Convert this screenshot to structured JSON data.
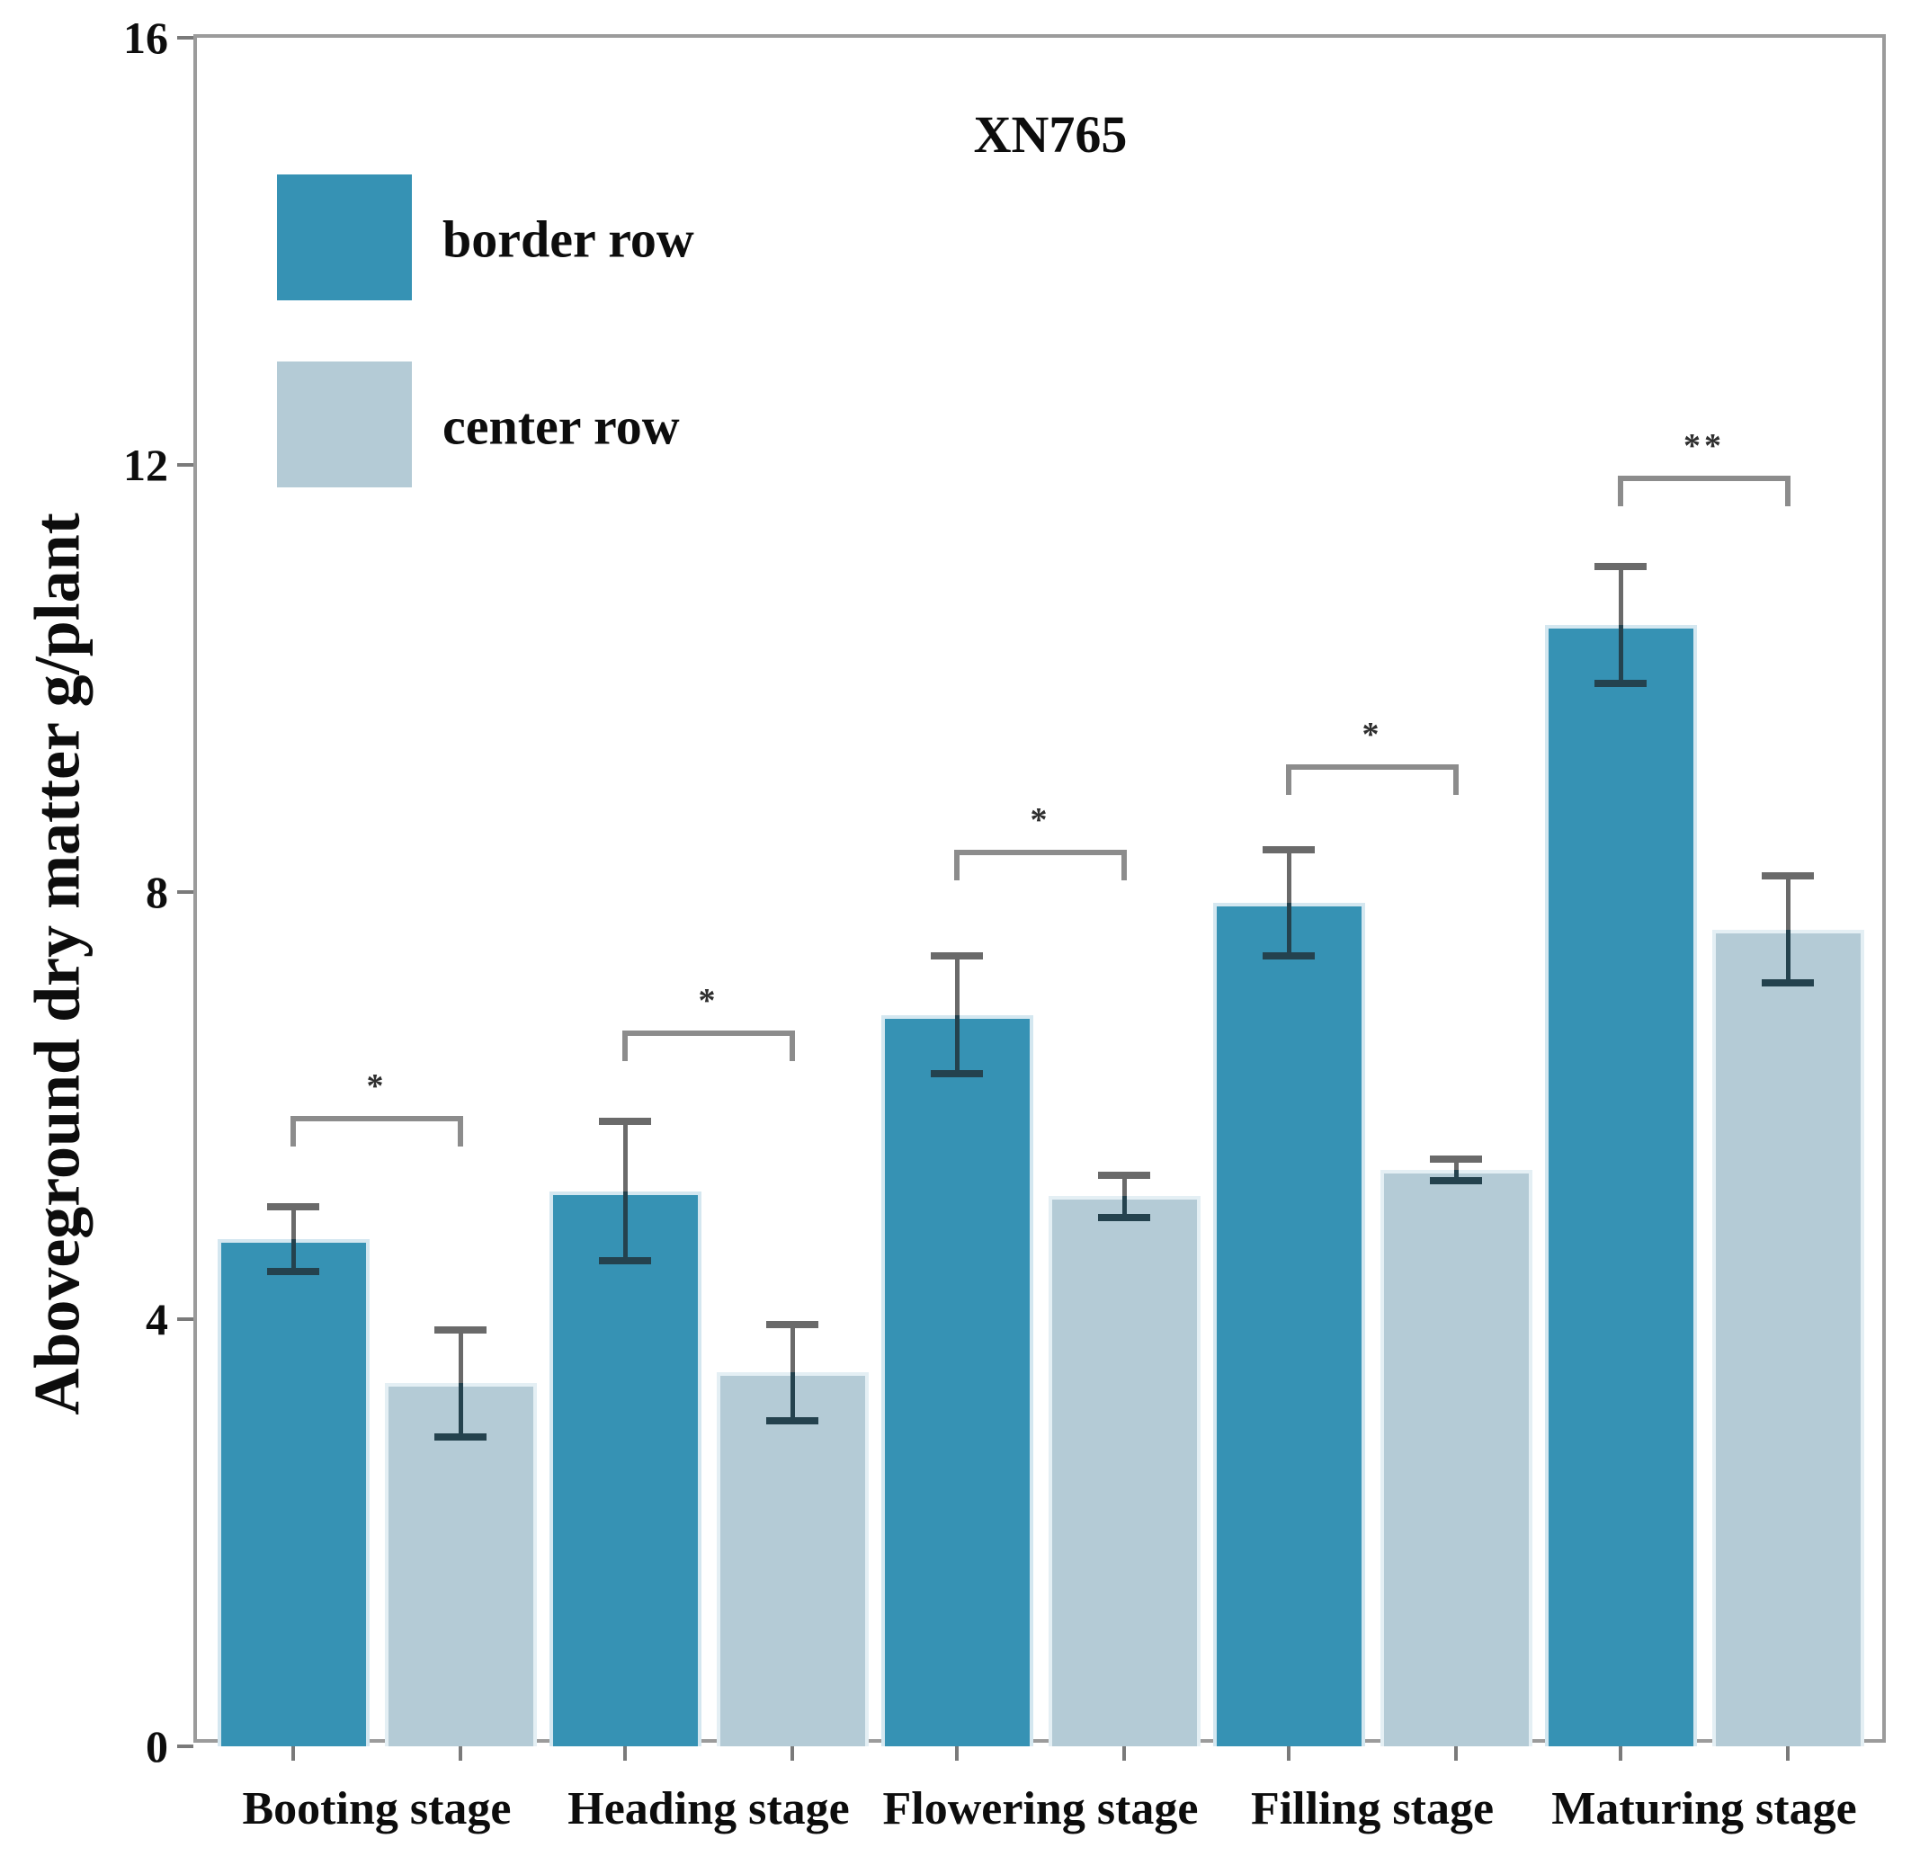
{
  "figure": {
    "title": "XN765",
    "y_axis_label": "Aboveground dry matter g/plant"
  },
  "colors": {
    "border_row_fill": "#3692B4",
    "border_row_halo": "#D4E7F0",
    "center_row_fill": "#B4CBD6",
    "center_row_halo": "#E4EFF4",
    "error_bar_upper": "#6A6A6A",
    "error_bar_lower": "#24424E",
    "bracket": "#8C8C8C",
    "axis_frame": "#9B9B9B",
    "text": "#0D0D0D"
  },
  "chart_data": {
    "type": "bar",
    "title": "XN765",
    "xlabel": "",
    "ylabel": "Aboveground dry matter g/plant",
    "ylim": [
      0,
      16
    ],
    "yticks": [
      0,
      4,
      8,
      12,
      16
    ],
    "grid": false,
    "legend_position": "upper-left-inside",
    "categories": [
      "Booting stage",
      "Heading stage",
      "Flowering stage",
      "Filling stage",
      "Maturing stage"
    ],
    "series": [
      {
        "name": "border row",
        "color": "#3692B4",
        "values": [
          4.75,
          5.2,
          6.85,
          7.9,
          10.5
        ],
        "errors": [
          0.3,
          0.65,
          0.55,
          0.5,
          0.55
        ]
      },
      {
        "name": "center row",
        "color": "#B4CBD6",
        "values": [
          3.4,
          3.5,
          5.15,
          5.4,
          7.65
        ],
        "errors": [
          0.5,
          0.45,
          0.2,
          0.1,
          0.5
        ]
      }
    ],
    "significance": [
      {
        "category": "Booting stage",
        "marker": "*",
        "bracket_top": 5.9
      },
      {
        "category": "Heading stage",
        "marker": "*",
        "bracket_top": 6.7
      },
      {
        "category": "Flowering stage",
        "marker": "*",
        "bracket_top": 8.4
      },
      {
        "category": "Filling stage",
        "marker": "*",
        "bracket_top": 9.2
      },
      {
        "category": "Maturing stage",
        "marker": "**",
        "bracket_top": 11.9
      }
    ]
  }
}
